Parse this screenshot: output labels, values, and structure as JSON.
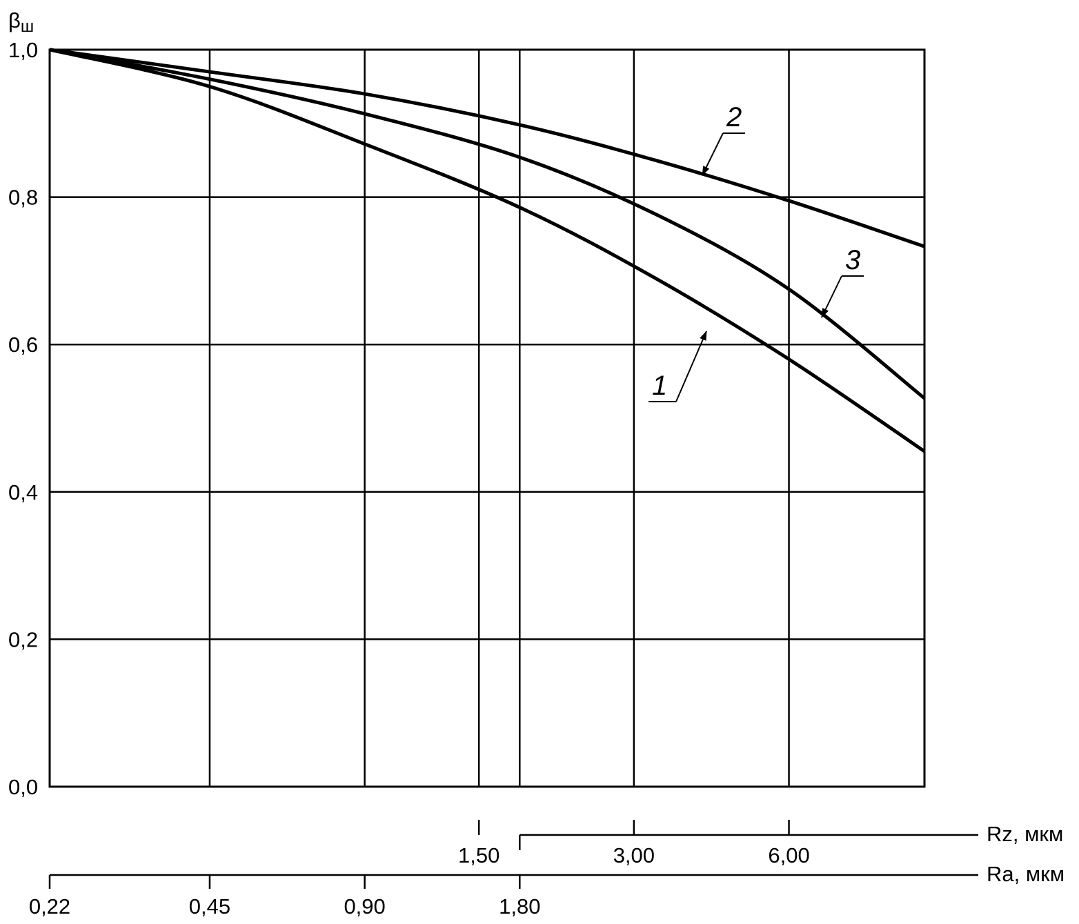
{
  "chart_data": {
    "type": "line",
    "ylabel": "β",
    "ylabel_sub": "ш",
    "ylim": [
      0,
      1.0
    ],
    "y_ticks": [
      "0,0",
      "0,2",
      "0,4",
      "0,6",
      "0,8",
      "1,0"
    ],
    "x_scale": "log",
    "grid": true,
    "legend": "none (curves labeled 1, 2, 3 with leader lines)",
    "x_axes": [
      {
        "label": "Ra, мкм",
        "ticks": [
          "0,22",
          "0,45",
          "0,90",
          "1,80"
        ],
        "tick_values": [
          0.22,
          0.45,
          0.9,
          1.8
        ]
      },
      {
        "label": "Rz, мкм",
        "ticks": [
          "1,50",
          "3,00",
          "6,00"
        ],
        "tick_values": [
          1.5,
          3.0,
          6.0
        ]
      }
    ],
    "series": [
      {
        "name": "1",
        "points": [
          [
            0.22,
            1.0
          ],
          [
            0.45,
            0.95
          ],
          [
            0.9,
            0.872
          ],
          [
            1.8,
            0.786
          ],
          [
            3.3,
            0.69
          ],
          [
            6.0,
            0.58
          ],
          [
            11.0,
            0.455
          ]
        ]
      },
      {
        "name": "2",
        "points": [
          [
            0.22,
            1.0
          ],
          [
            0.45,
            0.97
          ],
          [
            0.9,
            0.94
          ],
          [
            1.8,
            0.898
          ],
          [
            3.3,
            0.85
          ],
          [
            6.0,
            0.795
          ],
          [
            11.0,
            0.733
          ]
        ]
      },
      {
        "name": "3",
        "points": [
          [
            0.22,
            1.0
          ],
          [
            0.45,
            0.96
          ],
          [
            0.9,
            0.913
          ],
          [
            1.8,
            0.854
          ],
          [
            3.3,
            0.777
          ],
          [
            6.0,
            0.675
          ],
          [
            11.0,
            0.527
          ]
        ]
      }
    ]
  }
}
